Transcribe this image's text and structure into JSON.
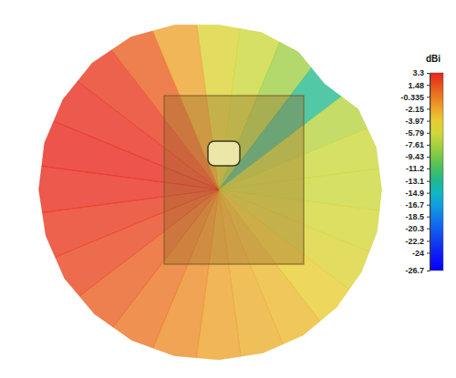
{
  "chart_data": {
    "type": "radiation_pattern",
    "colorbar": {
      "title": "dBi",
      "lim": [
        -26.7,
        3.3
      ],
      "ticks": [
        3.3,
        1.48,
        -0.335,
        -2.15,
        -3.97,
        -5.79,
        -7.61,
        -9.43,
        -11.2,
        -13.1,
        -14.9,
        -16.7,
        -18.5,
        -20.3,
        -22.2,
        -24,
        -26.7
      ]
    },
    "angles": [
      0,
      15,
      30,
      45,
      60,
      75,
      90,
      105,
      120,
      135,
      150,
      165,
      180,
      195,
      210,
      225,
      240,
      255,
      270,
      285,
      300,
      315,
      330,
      345
    ],
    "gain": [
      -5,
      -6,
      -8,
      -13,
      -7,
      -6,
      -6,
      -5.5,
      -5,
      -4,
      -3,
      -2.5,
      -2,
      -1,
      0,
      1,
      2,
      2.5,
      3,
      3.2,
      3,
      2.5,
      1,
      -2
    ]
  }
}
